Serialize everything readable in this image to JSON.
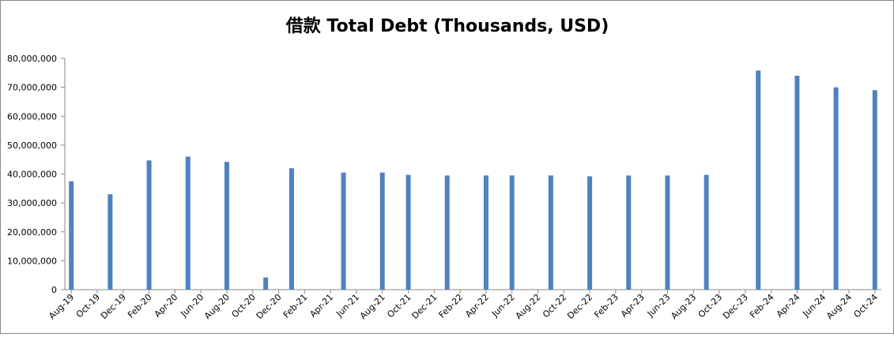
{
  "chart_data": {
    "type": "bar",
    "title": "借款 Total Debt (Thousands, USD)",
    "categories": [
      "Aug-19",
      null,
      "Oct-19",
      null,
      "Dec-19",
      null,
      "Feb-20",
      null,
      "Apr-20",
      null,
      "Jun-20",
      null,
      "Aug-20",
      null,
      "Oct-20",
      null,
      "Dec-20",
      null,
      "Feb-21",
      null,
      "Apr-21",
      null,
      "Jun-21",
      null,
      "Aug-21",
      null,
      "Oct-21",
      null,
      "Dec-21",
      null,
      "Feb-22",
      null,
      "Apr-22",
      null,
      "Jun-22",
      null,
      "Aug-22",
      null,
      "Oct-22",
      null,
      "Dec-22",
      null,
      "Feb-23",
      null,
      "Apr-23",
      null,
      "Jun-23",
      null,
      "Aug-23",
      null,
      "Oct-23",
      null,
      "Dec-23",
      null,
      "Feb-24",
      null,
      "Apr-24",
      null,
      "Jun-24",
      null,
      "Aug-24",
      null,
      "Oct-24"
    ],
    "values": [
      37500000,
      null,
      null,
      33000000,
      null,
      null,
      44700000,
      null,
      null,
      46000000,
      null,
      null,
      44200000,
      null,
      null,
      4200000,
      null,
      42000000,
      null,
      null,
      null,
      40500000,
      null,
      null,
      40500000,
      null,
      39700000,
      null,
      null,
      39500000,
      null,
      null,
      39500000,
      null,
      39500000,
      null,
      null,
      39500000,
      null,
      null,
      39200000,
      null,
      null,
      39500000,
      null,
      null,
      39500000,
      null,
      null,
      39700000,
      null,
      null,
      null,
      75800000,
      null,
      null,
      74000000,
      null,
      null,
      70000000,
      null,
      null,
      69000000
    ],
    "color": "#4f81bd",
    "ylim": [
      0,
      80000000
    ],
    "yticks": [
      0,
      {
        "value": 10000000,
        "label": "10,000,000"
      },
      {
        "value": 20000000,
        "label": "20,000,000"
      },
      {
        "value": 30000000,
        "label": "30,000,000"
      },
      {
        "value": 40000000,
        "label": "40,000,000"
      },
      {
        "value": 50000000,
        "label": "50,000,000"
      },
      {
        "value": 60000000,
        "label": "60,000,000"
      },
      {
        "value": 70000000,
        "label": "70,000,000"
      },
      {
        "value": 80000000,
        "label": "80,000,000"
      }
    ],
    "grid": false
  }
}
